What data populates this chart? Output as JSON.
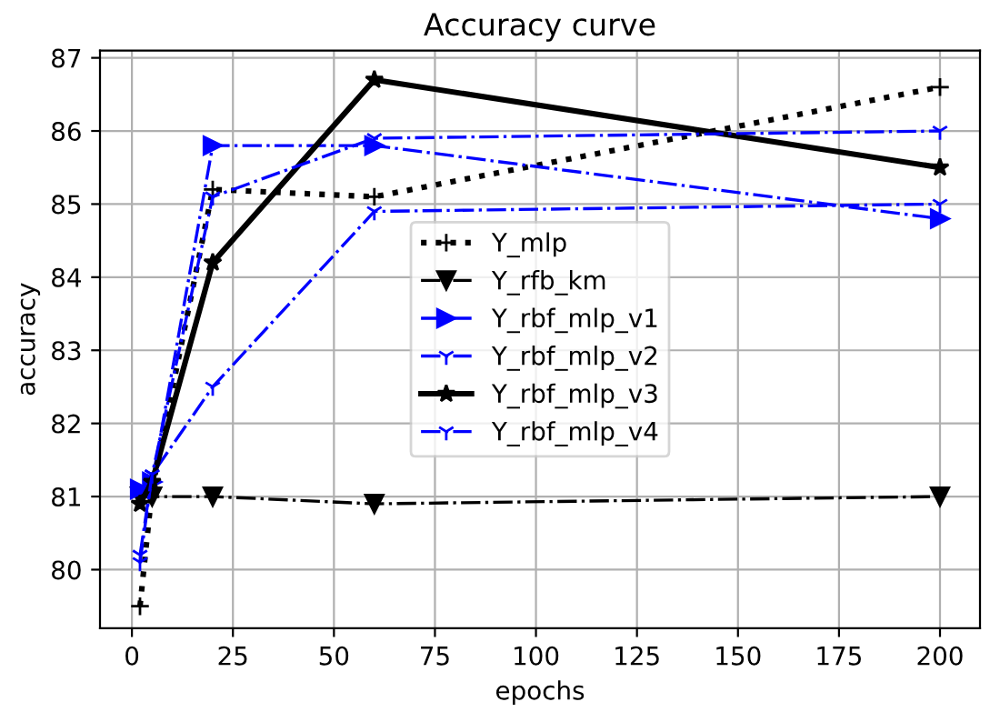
{
  "chart_data": {
    "type": "line",
    "title": "Accuracy curve",
    "xlabel": "epochs",
    "ylabel": "accuracy",
    "x": [
      2,
      5,
      20,
      60,
      200
    ],
    "series": [
      {
        "name": "Y_mlp",
        "color": "#000000",
        "marker": "cross",
        "line_style": "dotted",
        "values": [
          79.5,
          81.1,
          85.2,
          85.1,
          86.6
        ]
      },
      {
        "name": "Y_rfb_km",
        "color": "#000000",
        "marker": "triangle",
        "line_style": "dashdot",
        "values": [
          81.0,
          81.0,
          81.0,
          80.9,
          81.0
        ]
      },
      {
        "name": "Y_rbf_mlp_v1",
        "color": "#0000ff",
        "marker": "triangle",
        "line_style": "dashdot",
        "values": [
          81.1,
          81.2,
          85.8,
          85.8,
          84.8
        ]
      },
      {
        "name": "Y_rbf_mlp_v2",
        "color": "#0000ff",
        "marker": "cross",
        "line_style": "dashdot",
        "values": [
          80.1,
          81.3,
          82.5,
          84.9,
          85.0
        ]
      },
      {
        "name": "Y_rbf_mlp_v3",
        "color": "#000000",
        "marker": "star",
        "line_style": "solid",
        "values": [
          80.9,
          81.2,
          84.2,
          86.7,
          85.5
        ]
      },
      {
        "name": "Y_rbf_mlp_v4",
        "color": "#0000ff",
        "marker": "cross",
        "line_style": "dashdot",
        "values": [
          80.2,
          81.3,
          85.1,
          85.9,
          86.0
        ]
      }
    ],
    "xlim": [
      -7.9,
      209.9
    ],
    "ylim": [
      79.2,
      87.1
    ],
    "xticks": [
      0,
      25,
      50,
      75,
      100,
      125,
      150,
      175,
      200
    ],
    "yticks": [
      80,
      81,
      82,
      83,
      84,
      85,
      86,
      87
    ],
    "grid": true,
    "legend": "center"
  }
}
